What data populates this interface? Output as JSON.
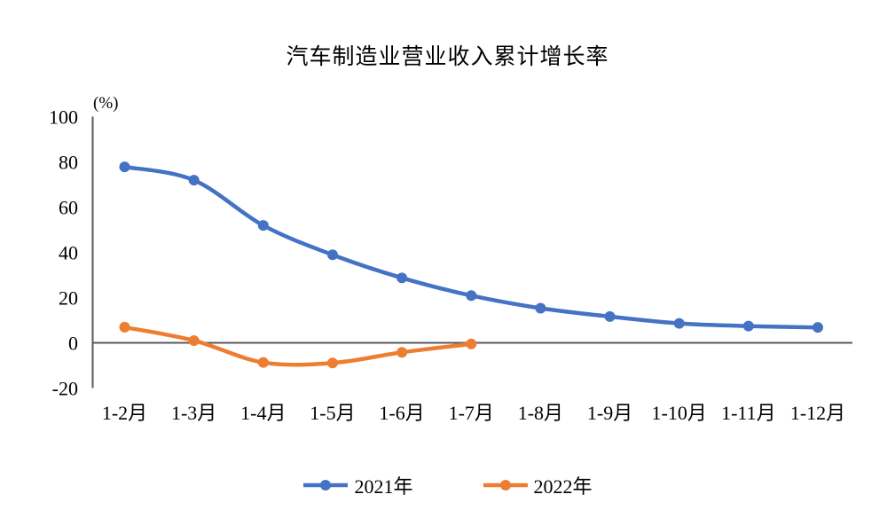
{
  "chart_data": {
    "type": "line",
    "title": "汽车制造业营业收入累计增长率",
    "unit_label": "(%)",
    "xlabel": "",
    "ylabel": "(%)",
    "categories": [
      "1-2月",
      "1-3月",
      "1-4月",
      "1-5月",
      "1-6月",
      "1-7月",
      "1-8月",
      "1-9月",
      "1-10月",
      "1-11月",
      "1-12月"
    ],
    "series": [
      {
        "name": "2021年",
        "color": "#4472C4",
        "values": [
          77.8,
          71.9,
          51.9,
          38.9,
          28.7,
          20.9,
          15.3,
          11.6,
          8.6,
          7.4,
          6.8
        ]
      },
      {
        "name": "2022年",
        "color": "#ED7D31",
        "values": [
          6.9,
          1.0,
          -8.7,
          -8.9,
          -4.2,
          -0.5
        ]
      }
    ],
    "ylim": [
      -20,
      100
    ],
    "yticks": [
      -20,
      0,
      20,
      40,
      60,
      80,
      100
    ],
    "grid": false,
    "smooth_lines": true,
    "legend_position": "bottom",
    "axis_color": "#595959",
    "text_color": "#000000"
  }
}
